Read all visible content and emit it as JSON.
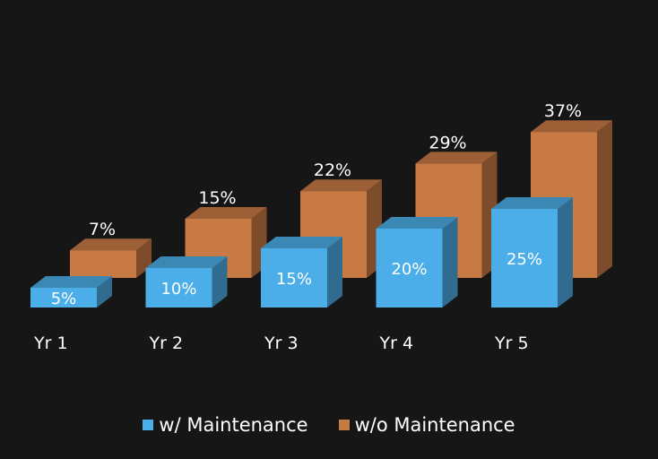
{
  "chart_data": {
    "type": "bar",
    "categories": [
      "Yr 1",
      "Yr 2",
      "Yr 3",
      "Yr 4",
      "Yr 5"
    ],
    "series": [
      {
        "name": "w/ Maintenance",
        "values": [
          5,
          10,
          15,
          20,
          25
        ],
        "labels": [
          "5%",
          "10%",
          "15%",
          "20%",
          "25%"
        ],
        "color": "#4baee8"
      },
      {
        "name": "w/o Maintenance",
        "values": [
          7,
          15,
          22,
          29,
          37
        ],
        "labels": [
          "7%",
          "15%",
          "22%",
          "29%",
          "37%"
        ],
        "color": "#c87a45"
      }
    ],
    "ylim": [
      0,
      40
    ],
    "grid": false,
    "legend_position": "bottom",
    "style": "3d-clustered",
    "background": "#171617"
  }
}
